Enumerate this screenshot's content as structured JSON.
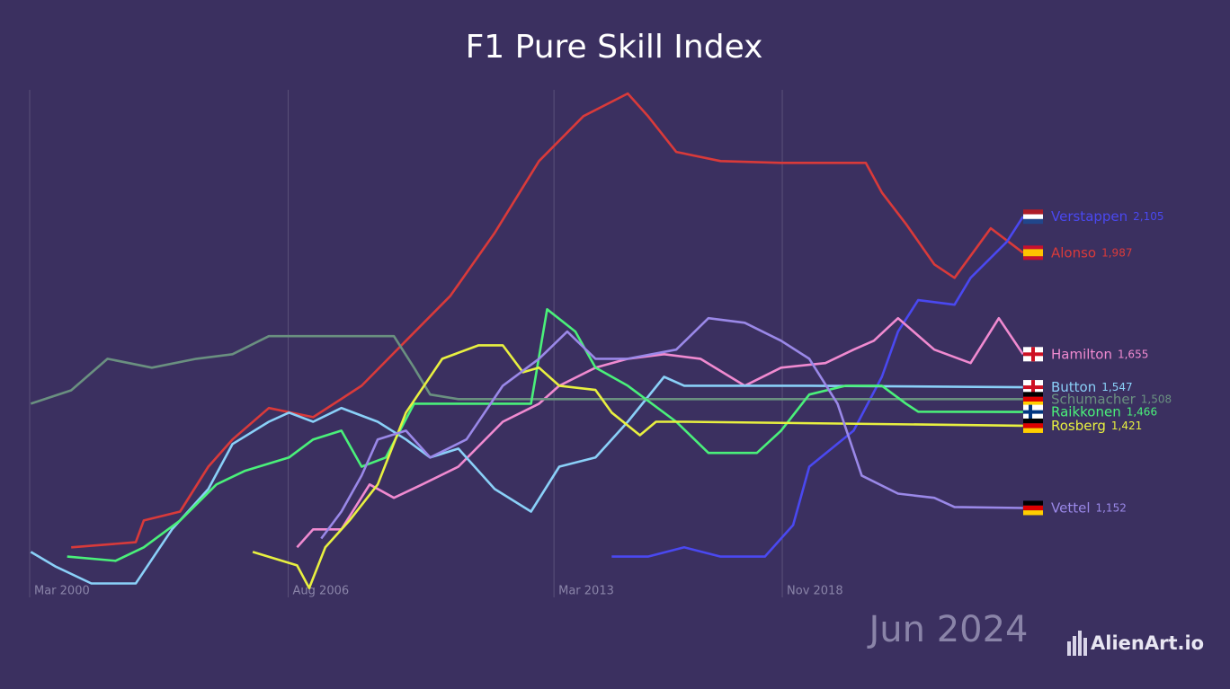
{
  "chart_data": {
    "type": "line",
    "title": "F1 Pure Skill Index",
    "date_label": "Jun 2024",
    "watermark": "AlienArt.io",
    "xlim": [
      2000.17,
      2024.96
    ],
    "ylim": [
      880,
      2520
    ],
    "xticks": [
      {
        "value": 2000.17,
        "label": "Mar 2000"
      },
      {
        "value": 2006.58,
        "label": "Aug 2006"
      },
      {
        "value": 2013.17,
        "label": "Mar 2013"
      },
      {
        "value": 2018.83,
        "label": "Nov 2018"
      }
    ],
    "grid": true,
    "series": [
      {
        "name": "Alonso",
        "color": "#d93a3a",
        "end_label": "1,987",
        "x": [
          2001.2,
          2002.8,
          2003.0,
          2003.9,
          2004.6,
          2005.2,
          2006.1,
          2007.2,
          2008.4,
          2009.5,
          2010.6,
          2011.7,
          2012.8,
          2013.9,
          2015.0,
          2015.5,
          2016.2,
          2017.3,
          2018.8,
          2020.9,
          2021.3,
          2021.9,
          2022.6,
          2023.1,
          2024.0,
          2024.8
        ],
        "values": [
          1023,
          1040,
          1111,
          1140,
          1287,
          1376,
          1479,
          1449,
          1552,
          1699,
          1846,
          2052,
          2287,
          2434,
          2508,
          2434,
          2317,
          2287,
          2281,
          2281,
          2184,
          2081,
          1949,
          1905,
          2067,
          1987
        ]
      },
      {
        "name": "Verstappen",
        "color": "#4a48f0",
        "end_label": "2,105",
        "x": [
          2014.6,
          2015.5,
          2016.4,
          2017.3,
          2018.4,
          2019.1,
          2019.5,
          2020.6,
          2021.3,
          2021.7,
          2022.2,
          2023.1,
          2023.5,
          2024.4,
          2024.8
        ],
        "values": [
          993,
          993,
          1023,
          993,
          993,
          1096,
          1287,
          1405,
          1581,
          1729,
          1832,
          1817,
          1905,
          2023,
          2105
        ]
      },
      {
        "name": "Hamilton",
        "color": "#f08ad0",
        "end_label": "1,655",
        "x": [
          2006.8,
          2007.2,
          2007.9,
          2008.6,
          2009.2,
          2009.9,
          2010.8,
          2011.9,
          2012.8,
          2013.3,
          2014.2,
          2015.0,
          2015.9,
          2016.8,
          2017.9,
          2018.8,
          2019.9,
          2020.6,
          2021.1,
          2021.7,
          2022.6,
          2023.5,
          2024.2,
          2024.8
        ],
        "values": [
          1023,
          1082,
          1082,
          1229,
          1185,
          1229,
          1287,
          1434,
          1493,
          1552,
          1611,
          1640,
          1655,
          1640,
          1552,
          1611,
          1626,
          1670,
          1699,
          1773,
          1670,
          1626,
          1773,
          1655
        ]
      },
      {
        "name": "Button",
        "color": "#8ad0f8",
        "end_label": "1,547",
        "x": [
          2000.2,
          2000.8,
          2001.7,
          2002.8,
          2003.7,
          2004.6,
          2005.2,
          2006.1,
          2006.6,
          2007.2,
          2007.9,
          2008.8,
          2009.5,
          2010.1,
          2010.8,
          2011.7,
          2012.6,
          2013.3,
          2014.2,
          2015.0,
          2015.9,
          2016.4,
          2017.3,
          2019.5,
          2024.8
        ],
        "values": [
          1008,
          961,
          905,
          905,
          1082,
          1214,
          1361,
          1434,
          1464,
          1434,
          1479,
          1434,
          1376,
          1317,
          1346,
          1214,
          1140,
          1287,
          1317,
          1434,
          1581,
          1552,
          1552,
          1552,
          1547
        ]
      },
      {
        "name": "Schumacher",
        "color": "#6a9080",
        "end_label": "1,508",
        "x": [
          2000.2,
          2001.2,
          2002.1,
          2003.2,
          2004.3,
          2005.2,
          2006.1,
          2006.8,
          2009.2,
          2009.7,
          2010.1,
          2010.8,
          2011.7,
          2012.6,
          2024.8
        ],
        "values": [
          1493,
          1537,
          1640,
          1611,
          1640,
          1655,
          1714,
          1714,
          1714,
          1611,
          1523,
          1508,
          1508,
          1508,
          1508
        ]
      },
      {
        "name": "Raikkonen",
        "color": "#4af07a",
        "end_label": "1,466",
        "x": [
          2001.1,
          2002.3,
          2003.0,
          2003.9,
          2004.8,
          2005.5,
          2006.6,
          2007.2,
          2007.9,
          2008.4,
          2009.0,
          2009.7,
          2011.5,
          2012.6,
          2013.0,
          2013.7,
          2014.2,
          2015.0,
          2016.2,
          2017.0,
          2018.2,
          2018.8,
          2019.5,
          2020.4,
          2021.3,
          2021.9,
          2022.2,
          2024.8
        ],
        "values": [
          993,
          979,
          1023,
          1111,
          1229,
          1273,
          1317,
          1376,
          1405,
          1287,
          1317,
          1493,
          1493,
          1493,
          1802,
          1729,
          1611,
          1552,
          1434,
          1332,
          1332,
          1405,
          1523,
          1552,
          1552,
          1493,
          1467,
          1466
        ]
      },
      {
        "name": "Rosberg",
        "color": "#e8f040",
        "end_label": "1,421",
        "x": [
          2005.7,
          2006.8,
          2007.1,
          2007.5,
          2008.1,
          2008.8,
          2009.5,
          2010.4,
          2011.3,
          2011.9,
          2012.4,
          2012.8,
          2013.3,
          2014.2,
          2014.6,
          2015.3,
          2015.7,
          2016.4,
          2024.8
        ],
        "values": [
          1008,
          964,
          890,
          1023,
          1111,
          1229,
          1464,
          1640,
          1684,
          1684,
          1596,
          1611,
          1552,
          1538,
          1464,
          1390,
          1434,
          1434,
          1421
        ]
      },
      {
        "name": "Vettel",
        "color": "#9a88e8",
        "end_label": "1,152",
        "x": [
          2007.4,
          2007.9,
          2008.4,
          2008.8,
          2009.5,
          2010.1,
          2011.0,
          2011.9,
          2012.8,
          2013.5,
          2014.2,
          2015.0,
          2016.2,
          2017.0,
          2017.9,
          2018.8,
          2019.5,
          2020.2,
          2020.8,
          2021.7,
          2022.6,
          2023.1,
          2024.8
        ],
        "values": [
          1052,
          1140,
          1258,
          1376,
          1405,
          1317,
          1376,
          1552,
          1640,
          1729,
          1640,
          1640,
          1670,
          1773,
          1758,
          1699,
          1640,
          1493,
          1258,
          1199,
          1185,
          1155,
          1152
        ]
      }
    ]
  }
}
